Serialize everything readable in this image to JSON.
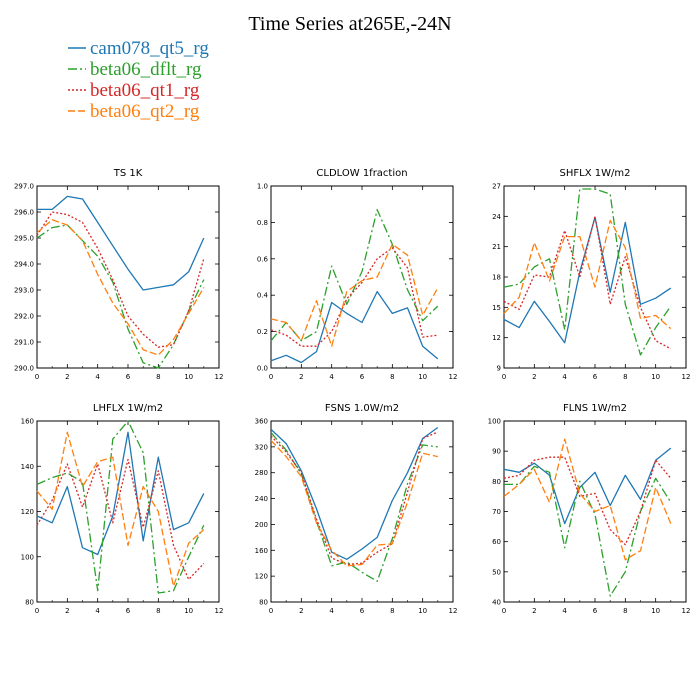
{
  "figure": {
    "title": "Time Series at265E,-24N"
  },
  "legend": [
    {
      "name": "cam078_qt5_rg",
      "color": "#1f77b4",
      "dash": "none"
    },
    {
      "name": "beta06_dflt_rg",
      "color": "#2ca02c",
      "dash": "9,3,2,3"
    },
    {
      "name": "beta06_qt1_rg",
      "color": "#d62728",
      "dash": "2,2"
    },
    {
      "name": "beta06_qt2_rg",
      "color": "#ff7f0e",
      "dash": "7,3"
    }
  ],
  "chart_data": [
    {
      "type": "line",
      "title": "TS   1K",
      "xlim": [
        0,
        12
      ],
      "ylim": [
        290,
        297
      ],
      "xticks": [
        0,
        2,
        4,
        6,
        8,
        10,
        12
      ],
      "yticks": [
        290,
        291,
        292,
        293,
        294,
        295,
        296,
        297
      ],
      "ytick_labels": [
        "290.0",
        "291.0",
        "292.0",
        "293.0",
        "294.0",
        "295.0",
        "296.0",
        "297.0"
      ],
      "x": [
        0,
        1,
        2,
        3,
        4,
        5,
        6,
        7,
        8,
        9,
        10,
        11
      ],
      "series": [
        {
          "name": "cam078_qt5_rg",
          "values": [
            296.1,
            296.1,
            296.6,
            296.5,
            295.6,
            294.7,
            293.8,
            293.0,
            293.1,
            293.2,
            293.7,
            295.0
          ]
        },
        {
          "name": "beta06_dflt_rg",
          "values": [
            295.0,
            295.4,
            295.5,
            294.9,
            294.3,
            293.3,
            291.5,
            290.2,
            290.0,
            290.9,
            292.2,
            293.4
          ]
        },
        {
          "name": "beta06_qt1_rg",
          "values": [
            295.1,
            296.0,
            295.9,
            295.6,
            294.6,
            293.4,
            292.0,
            291.3,
            290.8,
            290.9,
            292.2,
            294.2
          ]
        },
        {
          "name": "beta06_qt2_rg",
          "values": [
            295.2,
            295.7,
            295.5,
            294.9,
            293.6,
            292.5,
            291.7,
            290.7,
            290.5,
            291.1,
            292.1,
            293.1
          ]
        }
      ]
    },
    {
      "type": "line",
      "title": "CLDLOW   1fraction",
      "xlim": [
        0,
        12
      ],
      "ylim": [
        0,
        1
      ],
      "xticks": [
        0,
        2,
        4,
        6,
        8,
        10,
        12
      ],
      "yticks": [
        0,
        0.2,
        0.4,
        0.6,
        0.8,
        1.0
      ],
      "ytick_labels": [
        "0.0",
        "0.2",
        "0.4",
        "0.6",
        "0.8",
        "1.0"
      ],
      "x": [
        0,
        1,
        2,
        3,
        4,
        5,
        6,
        7,
        8,
        9,
        10,
        11
      ],
      "series": [
        {
          "name": "cam078_qt5_rg",
          "values": [
            0.04,
            0.07,
            0.03,
            0.09,
            0.36,
            0.3,
            0.25,
            0.42,
            0.3,
            0.33,
            0.12,
            0.05
          ]
        },
        {
          "name": "beta06_dflt_rg",
          "values": [
            0.15,
            0.25,
            0.15,
            0.2,
            0.56,
            0.35,
            0.53,
            0.87,
            0.68,
            0.43,
            0.26,
            0.34
          ]
        },
        {
          "name": "beta06_qt1_rg",
          "values": [
            0.21,
            0.18,
            0.12,
            0.12,
            0.2,
            0.38,
            0.47,
            0.6,
            0.66,
            0.55,
            0.17,
            0.18
          ]
        },
        {
          "name": "beta06_qt2_rg",
          "values": [
            0.27,
            0.25,
            0.15,
            0.37,
            0.12,
            0.42,
            0.48,
            0.5,
            0.68,
            0.62,
            0.29,
            0.44
          ]
        }
      ]
    },
    {
      "type": "line",
      "title": "SHFLX   1W/m2",
      "xlim": [
        0,
        12
      ],
      "ylim": [
        9,
        27
      ],
      "xticks": [
        0,
        2,
        4,
        6,
        8,
        10,
        12
      ],
      "yticks": [
        9,
        12,
        15,
        18,
        21,
        24,
        27
      ],
      "ytick_labels": [
        "9",
        "12",
        "15",
        "18",
        "21",
        "24",
        "27"
      ],
      "x": [
        0,
        1,
        2,
        3,
        4,
        5,
        6,
        7,
        8,
        9,
        10,
        11
      ],
      "series": [
        {
          "name": "cam078_qt5_rg",
          "values": [
            13.8,
            13.0,
            15.6,
            13.6,
            11.5,
            18.5,
            23.9,
            16.5,
            23.4,
            15.3,
            15.9,
            16.9
          ]
        },
        {
          "name": "beta06_dflt_rg",
          "values": [
            17.0,
            17.3,
            19.0,
            19.8,
            12.8,
            26.7,
            26.7,
            26.2,
            15.3,
            10.3,
            13.0,
            15.1
          ]
        },
        {
          "name": "beta06_qt1_rg",
          "values": [
            15.6,
            14.8,
            18.2,
            18.0,
            22.6,
            18.0,
            24.0,
            15.3,
            20.0,
            15.0,
            11.7,
            10.9
          ]
        },
        {
          "name": "beta06_qt2_rg",
          "values": [
            14.4,
            16.0,
            21.4,
            17.6,
            22.0,
            22.0,
            17.0,
            23.6,
            20.9,
            13.9,
            14.2,
            12.9
          ]
        }
      ]
    },
    {
      "type": "line",
      "title": "LHFLX   1W/m2",
      "xlim": [
        0,
        12
      ],
      "ylim": [
        80,
        160
      ],
      "xticks": [
        0,
        2,
        4,
        6,
        8,
        10,
        12
      ],
      "yticks": [
        80,
        100,
        120,
        140,
        160
      ],
      "ytick_labels": [
        "80",
        "100",
        "120",
        "140",
        "160"
      ],
      "x": [
        0,
        1,
        2,
        3,
        4,
        5,
        6,
        7,
        8,
        9,
        10,
        11
      ],
      "series": [
        {
          "name": "cam078_qt5_rg",
          "values": [
            118,
            115,
            131,
            104,
            101,
            118,
            155,
            107,
            144,
            112,
            115,
            128
          ]
        },
        {
          "name": "beta06_dflt_rg",
          "values": [
            132,
            135,
            137,
            133,
            85,
            152,
            160,
            146,
            84,
            85,
            100,
            114
          ]
        },
        {
          "name": "beta06_qt1_rg",
          "values": [
            114,
            125,
            141,
            122,
            141,
            115,
            143,
            113,
            138,
            105,
            90,
            97
          ]
        },
        {
          "name": "beta06_qt2_rg",
          "values": [
            129,
            121,
            155,
            131,
            142,
            144,
            105,
            131,
            120,
            87,
            106,
            112
          ]
        }
      ]
    },
    {
      "type": "line",
      "title": "FSNS   1.0W/m2",
      "xlim": [
        0,
        12
      ],
      "ylim": [
        80,
        360
      ],
      "xticks": [
        0,
        2,
        4,
        6,
        8,
        10,
        12
      ],
      "yticks": [
        80,
        120,
        160,
        200,
        240,
        280,
        320,
        360
      ],
      "ytick_labels": [
        "80",
        "120",
        "160",
        "200",
        "240",
        "280",
        "320",
        "360"
      ],
      "x": [
        0,
        1,
        2,
        3,
        4,
        5,
        6,
        7,
        8,
        9,
        10,
        11
      ],
      "series": [
        {
          "name": "cam078_qt5_rg",
          "values": [
            347,
            325,
            283,
            224,
            157,
            146,
            162,
            180,
            237,
            280,
            333,
            350
          ]
        },
        {
          "name": "beta06_dflt_rg",
          "values": [
            342,
            315,
            278,
            205,
            136,
            142,
            126,
            112,
            178,
            263,
            323,
            320
          ]
        },
        {
          "name": "beta06_qt1_rg",
          "values": [
            337,
            312,
            280,
            208,
            148,
            138,
            140,
            157,
            170,
            250,
            333,
            343
          ]
        },
        {
          "name": "beta06_qt2_rg",
          "values": [
            330,
            305,
            274,
            202,
            160,
            136,
            138,
            168,
            170,
            234,
            310,
            305
          ]
        }
      ]
    },
    {
      "type": "line",
      "title": "FLNS   1W/m2",
      "xlim": [
        0,
        12
      ],
      "ylim": [
        40,
        100
      ],
      "xticks": [
        0,
        2,
        4,
        6,
        8,
        10,
        12
      ],
      "yticks": [
        40,
        50,
        60,
        70,
        80,
        90,
        100
      ],
      "ytick_labels": [
        "40",
        "50",
        "60",
        "70",
        "80",
        "90",
        "100"
      ],
      "x": [
        0,
        1,
        2,
        3,
        4,
        5,
        6,
        7,
        8,
        9,
        10,
        11
      ],
      "series": [
        {
          "name": "cam078_qt5_rg",
          "values": [
            84,
            83,
            86,
            82,
            66,
            78,
            83,
            72,
            82,
            74,
            87,
            91
          ]
        },
        {
          "name": "beta06_dflt_rg",
          "values": [
            79,
            79,
            85,
            83,
            58,
            80,
            69,
            42,
            50,
            70,
            81,
            73
          ]
        },
        {
          "name": "beta06_qt1_rg",
          "values": [
            81,
            82,
            87,
            88,
            88,
            75,
            76,
            64,
            59,
            70,
            87,
            81
          ]
        },
        {
          "name": "beta06_qt2_rg",
          "values": [
            75,
            79,
            84,
            73,
            94,
            76,
            70,
            72,
            54,
            57,
            78,
            66
          ]
        }
      ]
    }
  ]
}
